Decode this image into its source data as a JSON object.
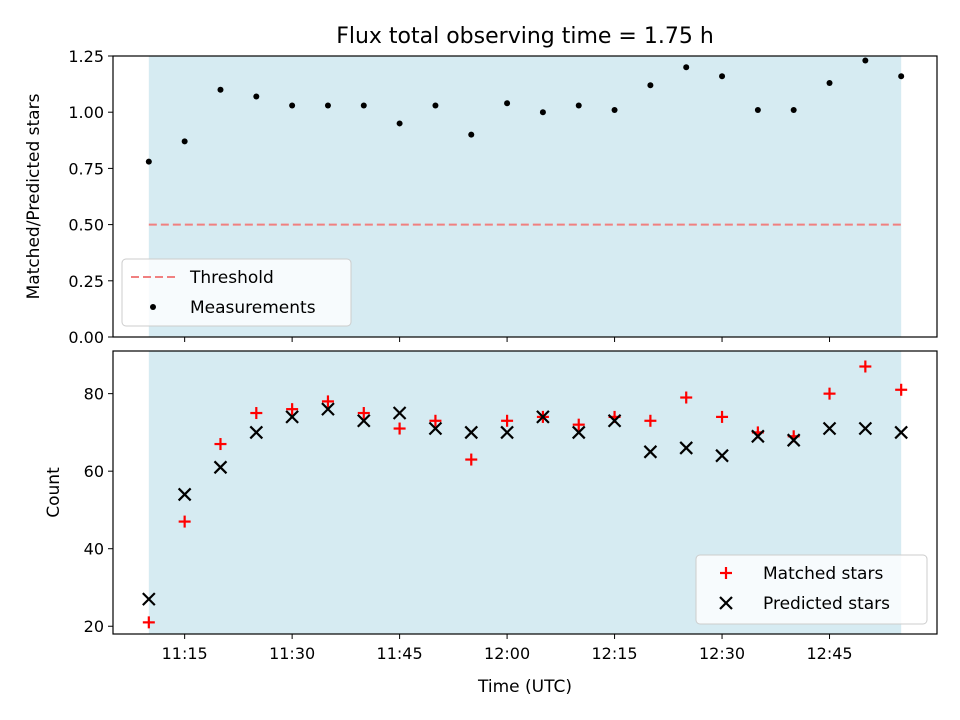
{
  "title": "Flux total observing time = 1.75 h",
  "chart_data": [
    {
      "type": "scatter",
      "panel": "top",
      "ylabel": "Matched/Predicted stars",
      "ylim": [
        0,
        1.25
      ],
      "yticks": [
        "0.00",
        "0.25",
        "0.50",
        "0.75",
        "1.00",
        "1.25"
      ],
      "threshold": {
        "name": "Threshold",
        "value": 0.5,
        "color": "#f08080",
        "style": "dashed"
      },
      "series": [
        {
          "name": "Measurements",
          "color": "#000000",
          "marker": "dot",
          "x": [
            "11:10",
            "11:15",
            "11:20",
            "11:25",
            "11:30",
            "11:35",
            "11:40",
            "11:45",
            "11:50",
            "11:55",
            "12:00",
            "12:05",
            "12:10",
            "12:15",
            "12:20",
            "12:25",
            "12:30",
            "12:35",
            "12:40",
            "12:45",
            "12:50",
            "12:55"
          ],
          "y": [
            0.78,
            0.87,
            1.1,
            1.07,
            1.03,
            1.03,
            1.03,
            0.95,
            1.03,
            0.9,
            1.04,
            1.0,
            1.03,
            1.01,
            1.12,
            1.2,
            1.16,
            1.01,
            1.01,
            1.13,
            1.23,
            1.16
          ]
        }
      ],
      "legend": {
        "position": "lower-left"
      },
      "shaded_span": {
        "x_start": "11:10",
        "x_end": "12:55",
        "color": "#add8e6"
      }
    },
    {
      "type": "scatter",
      "panel": "bottom",
      "xlabel": "Time (UTC)",
      "ylabel": "Count",
      "ylim": [
        18,
        91
      ],
      "yticks": [
        "20",
        "40",
        "60",
        "80"
      ],
      "xticks": [
        "11:15",
        "11:30",
        "11:45",
        "12:00",
        "12:15",
        "12:30",
        "12:45"
      ],
      "xlim": [
        "11:05",
        "13:00"
      ],
      "series": [
        {
          "name": "Matched stars",
          "color": "#ff0000",
          "marker": "plus",
          "x": [
            "11:10",
            "11:15",
            "11:20",
            "11:25",
            "11:30",
            "11:35",
            "11:40",
            "11:45",
            "11:50",
            "11:55",
            "12:00",
            "12:05",
            "12:10",
            "12:15",
            "12:20",
            "12:25",
            "12:30",
            "12:35",
            "12:40",
            "12:45",
            "12:50",
            "12:55"
          ],
          "y": [
            21,
            47,
            67,
            75,
            76,
            78,
            75,
            71,
            73,
            63,
            73,
            74,
            72,
            74,
            73,
            79,
            74,
            70,
            69,
            80,
            87,
            81
          ]
        },
        {
          "name": "Predicted stars",
          "color": "#000000",
          "marker": "x",
          "x": [
            "11:10",
            "11:15",
            "11:20",
            "11:25",
            "11:30",
            "11:35",
            "11:40",
            "11:45",
            "11:50",
            "11:55",
            "12:00",
            "12:05",
            "12:10",
            "12:15",
            "12:20",
            "12:25",
            "12:30",
            "12:35",
            "12:40",
            "12:45",
            "12:50",
            "12:55"
          ],
          "y": [
            27,
            54,
            61,
            70,
            74,
            76,
            73,
            75,
            71,
            70,
            70,
            74,
            70,
            73,
            65,
            66,
            64,
            69,
            68,
            71,
            71,
            70
          ]
        }
      ],
      "legend": {
        "position": "lower-right"
      },
      "shaded_span": {
        "x_start": "11:10",
        "x_end": "12:55",
        "color": "#add8e6"
      }
    }
  ]
}
